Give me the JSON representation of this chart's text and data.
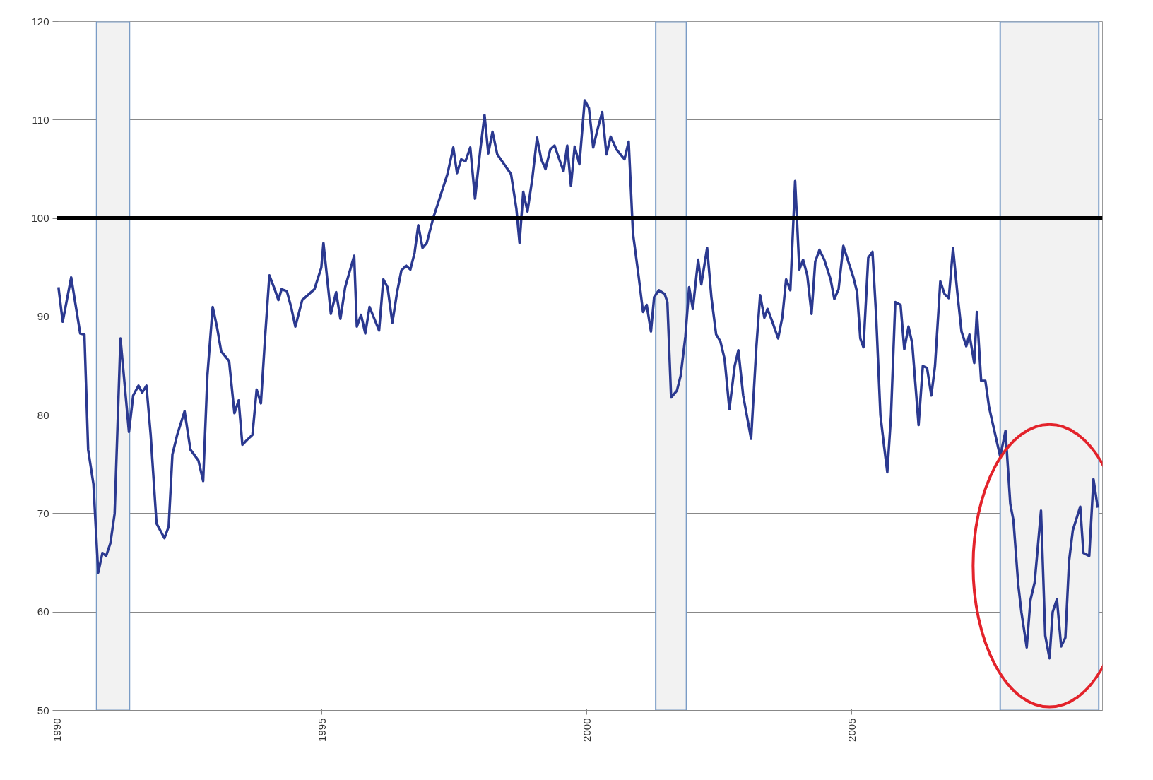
{
  "chart_data": {
    "type": "line",
    "x": [
      1990.03,
      1990.11,
      1990.27,
      1990.44,
      1990.52,
      1990.59,
      1990.69,
      1990.78,
      1990.86,
      1990.93,
      1991.01,
      1991.09,
      1991.2,
      1991.36,
      1991.44,
      1991.54,
      1991.61,
      1991.69,
      1991.77,
      1991.88,
      1992.03,
      1992.11,
      1992.18,
      1992.27,
      1992.41,
      1992.52,
      1992.67,
      1992.76,
      1992.84,
      1992.94,
      1993.02,
      1993.1,
      1993.25,
      1993.35,
      1993.43,
      1993.5,
      1993.59,
      1993.69,
      1993.77,
      1993.85,
      1993.93,
      1994.01,
      1994.11,
      1994.18,
      1994.24,
      1994.34,
      1994.42,
      1994.5,
      1994.63,
      1994.86,
      1994.99,
      1995.03,
      1995.17,
      1995.27,
      1995.35,
      1995.44,
      1995.61,
      1995.66,
      1995.74,
      1995.82,
      1995.9,
      1996.08,
      1996.16,
      1996.24,
      1996.33,
      1996.42,
      1996.5,
      1996.59,
      1996.67,
      1996.75,
      1996.82,
      1996.9,
      1996.98,
      1997.1,
      1997.28,
      1997.37,
      1997.48,
      1997.55,
      1997.63,
      1997.71,
      1997.8,
      1997.89,
      1997.99,
      1998.07,
      1998.14,
      1998.22,
      1998.31,
      1998.44,
      1998.57,
      1998.67,
      1998.73,
      1998.8,
      1998.88,
      1998.97,
      1999.06,
      1999.14,
      1999.22,
      1999.31,
      1999.39,
      1999.48,
      1999.56,
      1999.63,
      1999.7,
      1999.77,
      1999.86,
      1999.96,
      2000.04,
      2000.12,
      2000.2,
      2000.29,
      2000.37,
      2000.45,
      2000.56,
      2000.71,
      2000.79,
      2000.87,
      2000.98,
      2001.06,
      2001.13,
      2001.21,
      2001.27,
      2001.36,
      2001.47,
      2001.52,
      2001.59,
      2001.7,
      2001.77,
      2001.86,
      2001.93,
      2002.0,
      2002.1,
      2002.16,
      2002.27,
      2002.35,
      2002.44,
      2002.52,
      2002.6,
      2002.69,
      2002.79,
      2002.86,
      2002.95,
      2003.1,
      2003.2,
      2003.27,
      2003.35,
      2003.41,
      2003.5,
      2003.61,
      2003.69,
      2003.76,
      2003.84,
      2003.93,
      2004.01,
      2004.08,
      2004.16,
      2004.24,
      2004.31,
      2004.39,
      2004.48,
      2004.6,
      2004.67,
      2004.75,
      2004.84,
      2004.94,
      2005.03,
      2005.1,
      2005.16,
      2005.22,
      2005.31,
      2005.39,
      2005.46,
      2005.54,
      2005.61,
      2005.67,
      2005.74,
      2005.82,
      2005.92,
      2005.99,
      2006.07,
      2006.14,
      2006.26,
      2006.34,
      2006.42,
      2006.5,
      2006.57,
      2006.67,
      2006.75,
      2006.83,
      2006.91,
      2006.99,
      2007.07,
      2007.16,
      2007.22,
      2007.31,
      2007.36,
      2007.44,
      2007.52,
      2007.59,
      2007.8,
      2007.9,
      2007.99,
      2008.05,
      2008.14,
      2008.2,
      2008.3,
      2008.37,
      2008.45,
      2008.57,
      2008.65,
      2008.73,
      2008.79,
      2008.87,
      2008.95,
      2009.03,
      2009.1,
      2009.17,
      2009.31,
      2009.37,
      2009.48,
      2009.56,
      2009.64
    ],
    "series": [
      {
        "color": "#2b3990",
        "values": [
          93,
          89.5,
          94,
          88.3,
          88.2,
          76.5,
          73,
          64,
          66,
          65.7,
          67,
          70,
          87.8,
          78.3,
          82,
          83,
          82.3,
          83,
          78,
          69,
          67.5,
          68.7,
          76,
          78,
          80.4,
          76.5,
          75.4,
          73.3,
          84,
          91,
          89,
          86.5,
          85.5,
          80.2,
          81.5,
          77,
          77.5,
          78,
          82.6,
          81.2,
          88,
          94.2,
          92.8,
          91.7,
          92.8,
          92.6,
          91,
          89,
          91.7,
          92.8,
          95,
          97.5,
          90.3,
          92.5,
          89.8,
          93,
          96.2,
          89,
          90.2,
          88.3,
          91,
          88.6,
          93.8,
          93,
          89.4,
          92.5,
          94.7,
          95.2,
          94.8,
          96.5,
          99.3,
          97,
          97.5,
          100,
          103,
          104.5,
          107.2,
          104.6,
          106,
          105.8,
          107.2,
          102,
          107,
          110.5,
          106.6,
          108.8,
          106.5,
          105.5,
          104.5,
          101,
          97.5,
          102.7,
          100.7,
          104,
          108.2,
          106,
          105,
          107,
          107.4,
          106,
          104.8,
          107.4,
          103.3,
          107.3,
          105.5,
          112,
          111.2,
          107.2,
          109,
          110.8,
          106.5,
          108.3,
          107,
          106,
          107.8,
          98.5,
          94,
          90.5,
          91.2,
          88.5,
          92,
          92.7,
          92.3,
          91.5,
          81.8,
          82.5,
          84,
          88,
          93,
          90.8,
          95.8,
          93.3,
          97,
          92,
          88.2,
          87.5,
          85.7,
          80.6,
          85,
          86.6,
          82,
          77.6,
          87,
          92.2,
          89.9,
          90.8,
          89.5,
          87.8,
          90,
          93.8,
          92.7,
          103.8,
          94.8,
          95.8,
          94.2,
          90.3,
          95.6,
          96.8,
          95.8,
          93.8,
          91.8,
          92.8,
          97.2,
          95.5,
          94,
          92.5,
          87.8,
          86.9,
          96,
          96.6,
          90,
          80,
          76.8,
          74.2,
          80,
          91.5,
          91.2,
          86.7,
          89,
          87.3,
          79,
          85,
          84.8,
          82,
          85,
          93.6,
          92.3,
          91.9,
          97,
          92.5,
          88.5,
          87,
          88.2,
          85.3,
          90.5,
          83.5,
          83.5,
          80.8,
          75.8,
          78.4,
          71,
          69.3,
          62.8,
          60,
          56.4,
          61.2,
          63,
          70.3,
          57.6,
          55.3,
          60,
          61.3,
          56.5,
          57.4,
          65.2,
          68.3,
          70.7,
          66,
          65.7,
          73.5,
          70.6
        ]
      }
    ],
    "xlim": [
      1990,
      2009.73
    ],
    "xticks": [
      1990,
      1995,
      2000,
      2005
    ],
    "ylim": [
      50,
      120
    ],
    "yticks": [
      50,
      60,
      70,
      80,
      90,
      100,
      110,
      120
    ],
    "grid": "y",
    "ref_lines": [
      {
        "axis": "y",
        "value": 100,
        "color": "#000000"
      }
    ],
    "bands": [
      {
        "axis": "x",
        "from": 1990.75,
        "to": 1991.37,
        "color": "#f2f2f2"
      },
      {
        "axis": "x",
        "from": 2001.3,
        "to": 2001.88,
        "color": "#f2f2f2"
      },
      {
        "axis": "x",
        "from": 2007.8,
        "to": 2009.66,
        "color": "#f2f2f2"
      }
    ],
    "line_style": "solid",
    "marker": "none"
  }
}
